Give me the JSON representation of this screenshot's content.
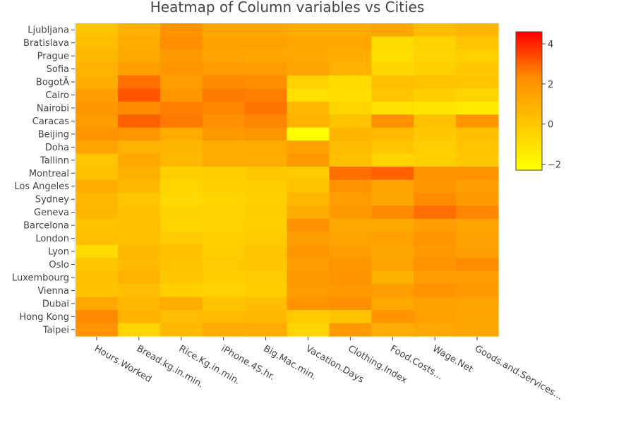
{
  "chart_data": {
    "type": "heatmap",
    "title": "Heatmap of Column variables vs Cities",
    "xlabel": "",
    "ylabel": "",
    "x_labels": [
      "Hours.Worked",
      "Bread.kg.in.min.",
      "Rice.Kg.in.min.",
      "iPhone.4S.hr.",
      "Big.Mac.min.",
      "Vacation.Days",
      "Clothing.Index",
      "Food.Costs...",
      "Wage.Net",
      "Goods.and.Services..."
    ],
    "y_tick_labels": [
      "Ljubljana",
      "Bratislava",
      "Prague",
      "Sofia",
      "BogotÃ",
      "Cairo",
      "Nairobi",
      "Caracas",
      "Beijing",
      "Doha",
      "Tallinn",
      "Montreal",
      "Los Angeles",
      "Sydney",
      "Geneva",
      "Barcelona",
      "London",
      "Lyon",
      "Oslo",
      "Luxembourg",
      "Vienna",
      "Dubai",
      "Hong Kong",
      "Taipei"
    ],
    "colorscale": {
      "min": -2.3,
      "max": 4.6,
      "stops": [
        "#ffff00",
        "#ffc800",
        "#ff8c00",
        "#ff0000"
      ]
    },
    "colorbar_ticks": [
      4,
      2,
      0,
      -2
    ],
    "grid": false,
    "colorbar_position": "right",
    "z_description": "standardized values, one row per city, 24 cities labeled from top to bottom",
    "z": [
      [
        0.2,
        0.9,
        2.0,
        1.3,
        1.3,
        1.1,
        1.1,
        1.3,
        0.5,
        0.7
      ],
      [
        0.4,
        1.1,
        2.2,
        1.5,
        1.5,
        1.3,
        1.3,
        -0.8,
        -0.4,
        0.1
      ],
      [
        0.6,
        1.2,
        1.8,
        1.4,
        1.3,
        1.2,
        1.0,
        -0.9,
        -0.5,
        -0.3
      ],
      [
        0.8,
        1.6,
        1.9,
        1.7,
        1.7,
        1.4,
        0.8,
        -0.6,
        -0.3,
        0.0
      ],
      [
        1.0,
        2.8,
        1.6,
        2.3,
        2.2,
        -0.4,
        -0.8,
        0.4,
        0.2,
        0.1
      ],
      [
        1.6,
        3.2,
        1.9,
        2.6,
        2.5,
        -1.0,
        -0.9,
        0.1,
        -0.2,
        -0.5
      ],
      [
        1.9,
        2.3,
        2.5,
        2.4,
        2.7,
        0.6,
        -0.5,
        -1.0,
        -1.2,
        -1.4
      ],
      [
        1.7,
        3.0,
        2.6,
        2.1,
        2.4,
        0.8,
        0.2,
        2.1,
        0.3,
        1.9
      ],
      [
        2.0,
        1.9,
        1.1,
        1.8,
        1.9,
        -2.3,
        0.7,
        0.5,
        0.0,
        0.4
      ],
      [
        1.4,
        0.8,
        0.7,
        1.0,
        1.1,
        1.5,
        0.5,
        0.1,
        -0.2,
        0.1
      ],
      [
        0.1,
        1.2,
        0.6,
        1.0,
        1.1,
        1.8,
        0.3,
        -0.5,
        -0.3,
        0.0
      ],
      [
        0.3,
        0.9,
        -0.3,
        -0.2,
        0.0,
        -0.1,
        2.8,
        3.0,
        2.0,
        2.0
      ],
      [
        1.0,
        0.6,
        -0.5,
        -0.3,
        -0.2,
        0.2,
        2.0,
        1.4,
        1.9,
        1.6
      ],
      [
        0.6,
        0.1,
        -0.7,
        -0.5,
        -0.3,
        0.6,
        1.7,
        1.3,
        2.3,
        1.8
      ],
      [
        0.7,
        0.3,
        -0.4,
        -0.4,
        -0.2,
        1.1,
        1.8,
        2.3,
        2.8,
        2.4
      ],
      [
        0.2,
        0.4,
        -0.5,
        -0.4,
        -0.3,
        2.1,
        1.2,
        1.2,
        1.6,
        1.4
      ],
      [
        0.4,
        0.3,
        -0.1,
        -0.3,
        -0.1,
        1.6,
        1.4,
        1.5,
        1.9,
        1.5
      ],
      [
        -0.8,
        0.6,
        0.3,
        -0.2,
        0.1,
        1.9,
        1.6,
        1.3,
        1.8,
        1.6
      ],
      [
        0.1,
        0.5,
        0.2,
        -0.1,
        0.0,
        1.7,
        1.9,
        1.4,
        2.0,
        2.3
      ],
      [
        0.3,
        0.8,
        0.0,
        -0.2,
        -0.1,
        1.8,
        2.0,
        0.9,
        1.7,
        1.7
      ],
      [
        0.2,
        0.4,
        -0.3,
        -0.4,
        -0.2,
        1.7,
        1.8,
        1.6,
        2.0,
        1.8
      ],
      [
        1.2,
        0.6,
        1.1,
        0.2,
        0.4,
        2.0,
        2.2,
        1.2,
        1.5,
        1.4
      ],
      [
        2.3,
        0.8,
        0.4,
        0.5,
        0.6,
        -0.1,
        0.2,
        2.0,
        1.5,
        1.3
      ],
      [
        2.0,
        -0.5,
        0.6,
        1.0,
        1.1,
        -0.5,
        1.8,
        1.1,
        1.2,
        1.3
      ]
    ]
  }
}
